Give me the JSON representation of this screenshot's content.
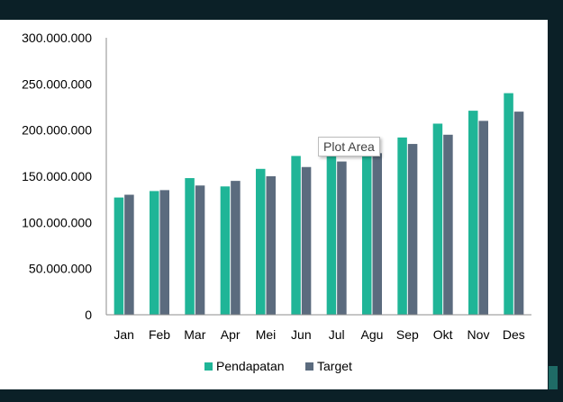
{
  "tooltip": {
    "text": "Plot Area"
  },
  "colors": {
    "background": "#0b2027",
    "series_a": "#1fb597",
    "series_b": "#5b6b7e",
    "axis": "#8c8c8c",
    "text": "#000000"
  },
  "chart_data": {
    "type": "bar",
    "title": "",
    "xlabel": "",
    "ylabel": "",
    "categories": [
      "Jan",
      "Feb",
      "Mar",
      "Apr",
      "Mei",
      "Jun",
      "Jul",
      "Agu",
      "Sep",
      "Okt",
      "Nov",
      "Des"
    ],
    "ylim": [
      0,
      300000000
    ],
    "yticks": [
      0,
      50000000,
      100000000,
      150000000,
      200000000,
      250000000,
      300000000
    ],
    "ytick_labels": [
      "0",
      "50.000.000",
      "100.000.000",
      "150.000.000",
      "200.000.000",
      "250.000.000",
      "300.000.000"
    ],
    "grid": false,
    "legend": "bottom",
    "series": [
      {
        "name": "Pendapatan",
        "color": "#1fb597",
        "values": [
          127000000,
          134000000,
          148000000,
          139000000,
          158000000,
          172000000,
          174000000,
          190000000,
          192000000,
          207000000,
          221000000,
          240000000
        ]
      },
      {
        "name": "Target",
        "color": "#5b6b7e",
        "values": [
          130000000,
          135000000,
          140000000,
          145000000,
          150000000,
          160000000,
          166000000,
          175000000,
          185000000,
          195000000,
          210000000,
          220000000
        ]
      }
    ]
  }
}
